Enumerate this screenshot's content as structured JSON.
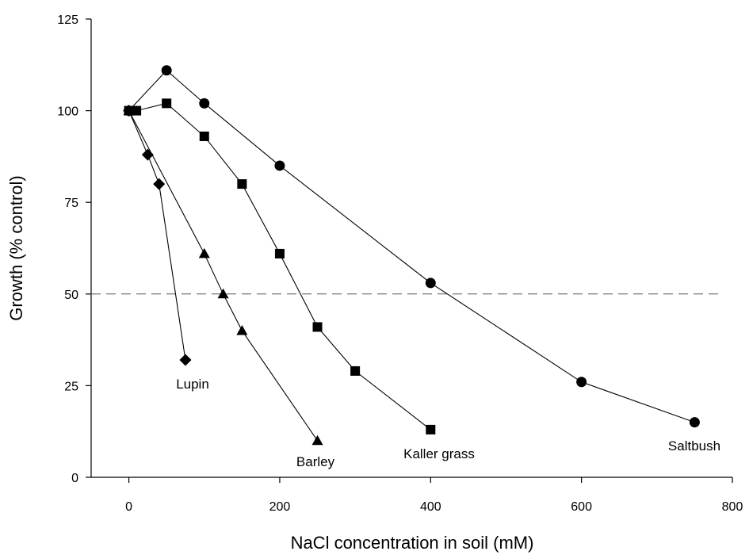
{
  "chart_data": {
    "type": "line",
    "xlabel": "NaCl concentration in soil (mM)",
    "ylabel": "Growth (% control)",
    "xlim": [
      -50,
      800
    ],
    "ylim": [
      0,
      125
    ],
    "x_ticks": [
      0,
      200,
      400,
      600,
      800
    ],
    "y_ticks": [
      0,
      25,
      50,
      75,
      100,
      125
    ],
    "x_tick_labels": [
      "0",
      "200",
      "400",
      "600",
      "800"
    ],
    "y_tick_labels": [
      "0",
      "25",
      "50",
      "75",
      "100",
      "125"
    ],
    "reference_line": {
      "y": 50,
      "style": "dashed"
    },
    "grid": false,
    "series": [
      {
        "name": "Saltbush",
        "marker": "circle",
        "x": [
          0,
          50,
          100,
          200,
          400,
          600,
          750
        ],
        "y": [
          100,
          111,
          102,
          85,
          53,
          26,
          15
        ]
      },
      {
        "name": "Kaller grass",
        "marker": "square",
        "x": [
          0,
          10,
          50,
          100,
          150,
          200,
          250,
          300,
          400
        ],
        "y": [
          100,
          100,
          102,
          93,
          80,
          61,
          41,
          29,
          13
        ]
      },
      {
        "name": "Barley",
        "marker": "triangle",
        "x": [
          0,
          100,
          125,
          150,
          250
        ],
        "y": [
          100,
          61,
          50,
          40,
          10
        ]
      },
      {
        "name": "Lupin",
        "marker": "diamond",
        "x": [
          0,
          25,
          40,
          75
        ],
        "y": [
          100,
          88,
          80,
          32
        ]
      }
    ]
  }
}
